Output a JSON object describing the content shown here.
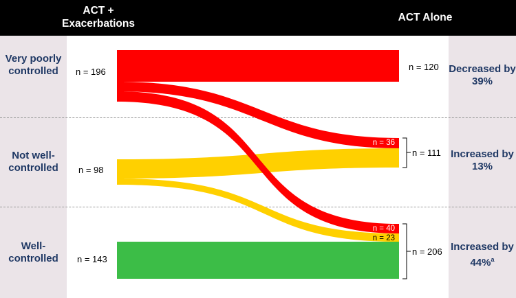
{
  "header": {
    "left_title": "ACT + Exacerbations",
    "right_title": "ACT Alone"
  },
  "rows": [
    {
      "label": "Very poorly controlled",
      "left_n": "n = 196",
      "right_n": "n = 120",
      "change": "Decreased by 39%",
      "change_sup": ""
    },
    {
      "label": "Not well-controlled",
      "left_n": "n = 98",
      "right_n": "n = 111",
      "change": "Increased by 13%",
      "change_sup": ""
    },
    {
      "label": "Well-controlled",
      "left_n": "n = 143",
      "right_n": "n = 206",
      "change": "Increased by 44%",
      "change_sup": "a"
    }
  ],
  "flow_labels": {
    "red_to_not_well": "n = 36",
    "red_to_well": "n = 40",
    "yellow_to_well": "n = 23"
  },
  "colors": {
    "very_poorly": "#ff0000",
    "not_well": "#ffd000",
    "well": "#3cbd47",
    "label_text": "#1f3864",
    "header_bg": "#000000",
    "band_bg": "#ebe4e8"
  }
}
